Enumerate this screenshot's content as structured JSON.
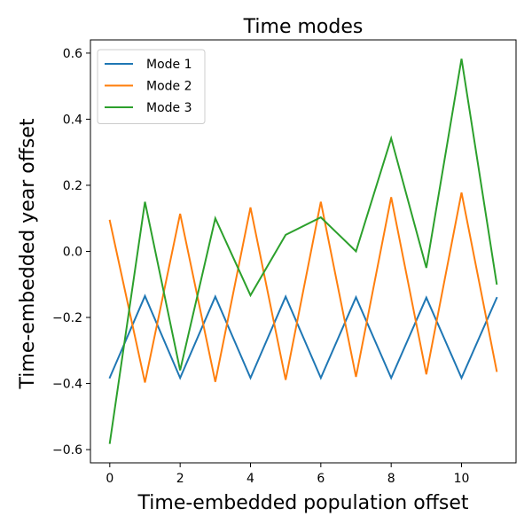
{
  "chart_data": {
    "type": "line",
    "title": "Time modes",
    "xlabel": "Time-embedded population offset",
    "ylabel": "Time-embedded year offset",
    "x": [
      0,
      1,
      2,
      3,
      4,
      5,
      6,
      7,
      8,
      9,
      10,
      11
    ],
    "xlim": [
      -0.55,
      11.55
    ],
    "ylim": [
      -0.64,
      0.64
    ],
    "xticks": [
      "0",
      "2",
      "4",
      "6",
      "8",
      "10"
    ],
    "xtick_values": [
      0,
      2,
      4,
      6,
      8,
      10
    ],
    "yticks": [
      "−0.6",
      "−0.4",
      "−0.2",
      "0.0",
      "0.2",
      "0.4",
      "0.6"
    ],
    "ytick_values": [
      -0.6,
      -0.4,
      -0.2,
      0.0,
      0.2,
      0.4,
      0.6
    ],
    "grid": false,
    "legend_position": "top-left",
    "series": [
      {
        "name": "Mode 1",
        "color": "#1f77b4",
        "values": [
          -0.382,
          -0.135,
          -0.383,
          -0.137,
          -0.383,
          -0.137,
          -0.383,
          -0.139,
          -0.383,
          -0.14,
          -0.383,
          -0.141
        ]
      },
      {
        "name": "Mode 2",
        "color": "#ff7f0e",
        "values": [
          0.093,
          -0.397,
          0.114,
          -0.395,
          0.133,
          -0.389,
          0.15,
          -0.38,
          0.164,
          -0.372,
          0.178,
          -0.362
        ]
      },
      {
        "name": "Mode 3",
        "color": "#2ca02c",
        "values": [
          -0.58,
          0.15,
          -0.36,
          0.1,
          -0.133,
          0.05,
          0.103,
          0.0,
          0.342,
          -0.05,
          0.583,
          -0.098
        ]
      }
    ]
  }
}
